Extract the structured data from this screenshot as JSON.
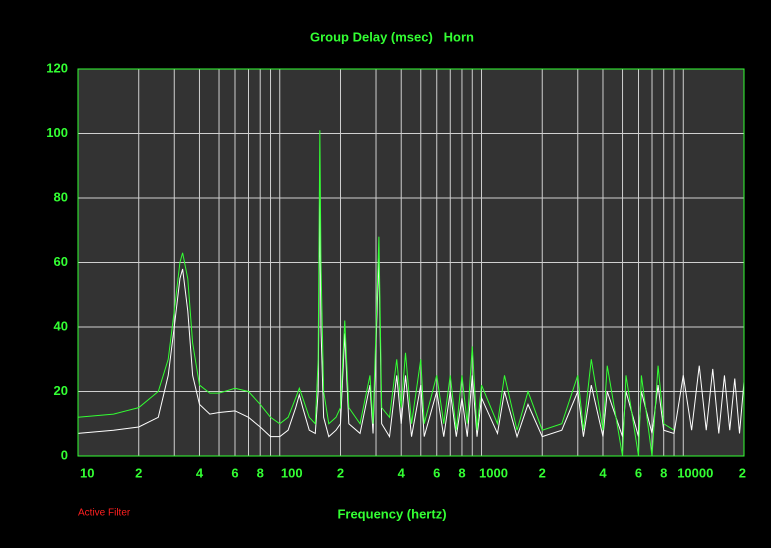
{
  "chart_data": {
    "type": "line",
    "title": "Group Delay (msec)   Horn",
    "x_label": "Frequency (hertz)",
    "annotation": "Active Filter",
    "log_x": true,
    "grid": true,
    "xlim": [
      10,
      20000
    ],
    "ylim": [
      0,
      120
    ],
    "yticks": [
      0,
      20,
      40,
      60,
      80,
      100,
      120
    ],
    "xticks": [
      10,
      {
        "value": 20,
        "label": "2"
      },
      {
        "value": 40,
        "label": "4"
      },
      {
        "value": 60,
        "label": "6"
      },
      {
        "value": 80,
        "label": "8"
      },
      100,
      {
        "value": 200,
        "label": "2"
      },
      {
        "value": 400,
        "label": "4"
      },
      {
        "value": 600,
        "label": "6"
      },
      {
        "value": 800,
        "label": "8"
      },
      1000,
      {
        "value": 2000,
        "label": "2"
      },
      {
        "value": 4000,
        "label": "4"
      },
      {
        "value": 6000,
        "label": "6"
      },
      {
        "value": 8000,
        "label": "8"
      },
      10000,
      {
        "value": 20000,
        "label": "2"
      }
    ],
    "x_minor_ticks": [
      30,
      50,
      70,
      90,
      300,
      500,
      700,
      900,
      3000,
      5000,
      7000,
      9000
    ],
    "x": [
      10,
      15,
      20,
      25,
      28,
      30,
      32,
      33,
      35,
      37,
      40,
      45,
      50,
      60,
      70,
      80,
      90,
      100,
      110,
      120,
      125,
      130,
      140,
      150,
      155,
      158,
      160,
      165,
      175,
      190,
      200,
      210,
      220,
      250,
      280,
      290,
      310,
      320,
      350,
      380,
      400,
      420,
      450,
      500,
      520,
      600,
      650,
      700,
      750,
      800,
      850,
      900,
      950,
      1000,
      1200,
      1300,
      1500,
      1700,
      2000,
      2500,
      3000,
      3200,
      3500,
      4000,
      4200,
      5000,
      5200,
      6000,
      6200,
      7000,
      7500,
      8000,
      9000,
      10000,
      11000,
      12000,
      13000,
      14000,
      15000,
      16000,
      17000,
      18000,
      19000,
      20000
    ],
    "series": [
      {
        "color": "#ffffff",
        "values": [
          7,
          8,
          9,
          12,
          25,
          40,
          55,
          58,
          45,
          25,
          16,
          13,
          13.5,
          14,
          12,
          9,
          6,
          6,
          8,
          15,
          19,
          15,
          8,
          7,
          20,
          80,
          40,
          12,
          6,
          8,
          10,
          38,
          10,
          7,
          22,
          7,
          62,
          10,
          6,
          25,
          10,
          25,
          6,
          22,
          6,
          20,
          6,
          20,
          6,
          18,
          6,
          25,
          6,
          18,
          7,
          20,
          6,
          16,
          6,
          8,
          20,
          6,
          22,
          6,
          20,
          6,
          20,
          6,
          20,
          7,
          22,
          8,
          7,
          25,
          8,
          28,
          8,
          27,
          7,
          25,
          8,
          24,
          7,
          23
        ]
      },
      {
        "color": "#33ff33",
        "values": [
          12,
          13,
          15,
          20,
          30,
          45,
          60,
          63,
          55,
          35,
          22,
          19.5,
          19.5,
          21,
          20,
          16,
          12,
          10,
          12,
          18,
          21,
          18,
          12,
          10,
          30,
          101,
          60,
          20,
          10,
          12,
          15,
          42,
          15,
          10,
          25,
          10,
          68,
          15,
          12,
          30,
          15,
          32,
          10,
          30,
          10,
          25,
          10,
          25,
          8,
          25,
          10,
          34,
          8,
          22,
          10,
          25,
          8,
          20,
          8,
          10,
          25,
          8,
          30,
          8,
          28,
          0,
          25,
          0,
          25,
          0,
          28,
          10,
          8,
          null,
          null,
          null,
          null,
          null,
          null,
          null,
          null,
          null,
          null,
          null
        ]
      }
    ]
  }
}
